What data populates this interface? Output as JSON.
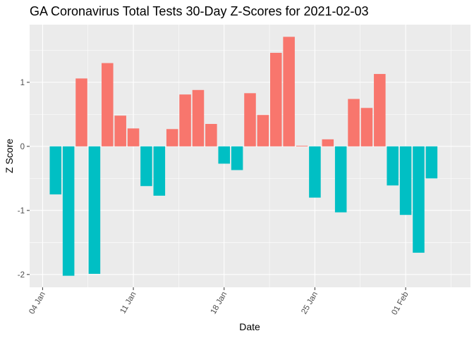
{
  "chart_data": {
    "type": "bar",
    "title": "GA Coronavirus Total Tests 30-Day Z-Scores for 2021-02-03",
    "xlabel": "Date",
    "ylabel": "Z Score",
    "x_tick_labels": [
      "04 Jan",
      "11 Jan",
      "18 Jan",
      "25 Jan",
      "01 Feb"
    ],
    "y_tick_labels": [
      "-2",
      "-1",
      "0",
      "1"
    ],
    "y_ticks": [
      -2,
      -1,
      0,
      1
    ],
    "ylim": [
      -2.2,
      1.9
    ],
    "xlim": [
      "2021-01-03",
      "2021-02-06"
    ],
    "grid": true,
    "legend": "none",
    "colors": {
      "positive": "#F8766D",
      "negative": "#00BFC4",
      "panel": "#EBEBEB",
      "grid": "#FFFFFF"
    },
    "dates": [
      "2021-01-05",
      "2021-01-06",
      "2021-01-07",
      "2021-01-08",
      "2021-01-09",
      "2021-01-10",
      "2021-01-11",
      "2021-01-12",
      "2021-01-13",
      "2021-01-14",
      "2021-01-15",
      "2021-01-16",
      "2021-01-17",
      "2021-01-18",
      "2021-01-19",
      "2021-01-20",
      "2021-01-21",
      "2021-01-22",
      "2021-01-23",
      "2021-01-24",
      "2021-01-25",
      "2021-01-26",
      "2021-01-27",
      "2021-01-28",
      "2021-01-29",
      "2021-01-30",
      "2021-01-31",
      "2021-02-01",
      "2021-02-02",
      "2021-02-03"
    ],
    "values": [
      -0.75,
      -2.02,
      1.06,
      -1.99,
      1.3,
      0.48,
      0.28,
      -0.62,
      -0.77,
      0.27,
      0.81,
      0.88,
      0.35,
      -0.27,
      -0.37,
      0.83,
      0.49,
      1.46,
      1.71,
      0.01,
      -0.8,
      0.11,
      -1.03,
      0.74,
      0.6,
      1.13,
      -0.61,
      -1.07,
      -1.66,
      -0.5
    ]
  }
}
